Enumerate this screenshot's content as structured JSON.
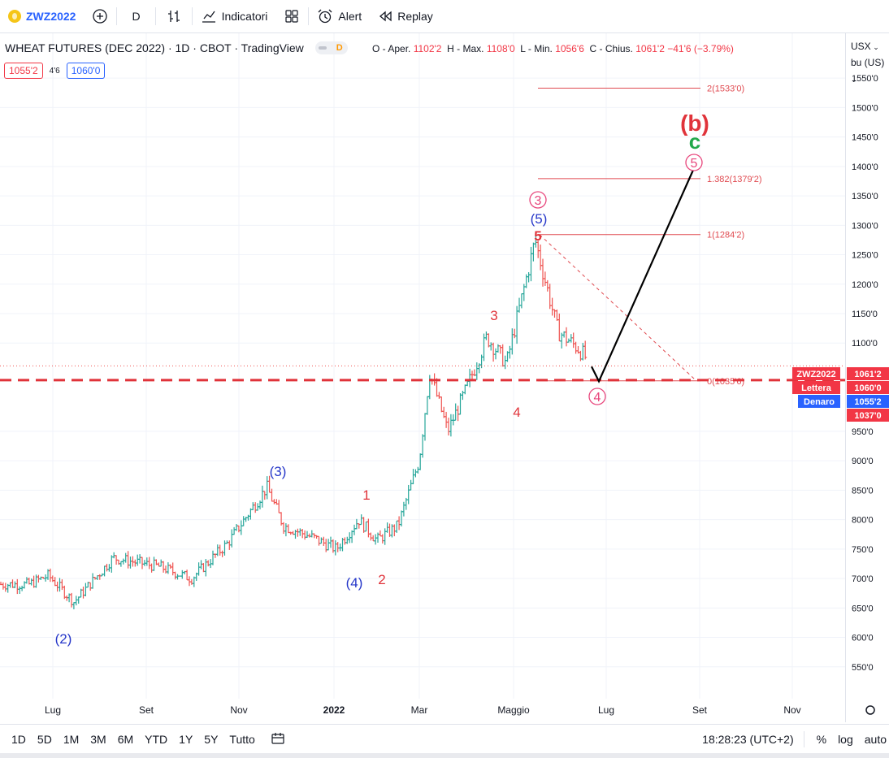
{
  "toolbar": {
    "symbol": "ZWZ2022",
    "interval": "D",
    "indicators_label": "Indicatori",
    "alert_label": "Alert",
    "replay_label": "Replay"
  },
  "legend": {
    "title": "WHEAT FUTURES (DEC 2022) · 1D · CBOT · TradingView",
    "badge": "D",
    "open_label": "O - Aper.",
    "open": "1102'2",
    "high_label": "H - Max.",
    "high": "1108'0",
    "low_label": "L - Min.",
    "low": "1056'6",
    "close_label": "C - Chius.",
    "close": "1061'2",
    "change": "−41'6 (−3.79%)",
    "bid": "1055'2",
    "spread": "4'6",
    "ask": "1060'0"
  },
  "currency": {
    "label": "USX",
    "unit": "bu (US)"
  },
  "price_labels": [
    "1550'0",
    "1500'0",
    "1450'0",
    "1400'0",
    "1350'0",
    "1300'0",
    "1250'0",
    "1200'0",
    "1150'0",
    "1100'0",
    "950'0",
    "900'0",
    "850'0",
    "800'0",
    "750'0",
    "700'0",
    "650'0",
    "600'0",
    "550'0"
  ],
  "tags": [
    {
      "name": "ZWZ2022",
      "value": "1061'2",
      "color": "#f23645"
    },
    {
      "name": "Lettera",
      "value": "1060'0",
      "color": "#f23645"
    },
    {
      "name": "Denaro",
      "value": "1055'2",
      "color": "#2962ff"
    },
    {
      "name": "",
      "value": "1037'0",
      "color": "#f23645"
    }
  ],
  "time_labels": [
    "Lug",
    "Set",
    "Nov",
    "2022",
    "Mar",
    "Maggio",
    "Lug",
    "Set",
    "Nov"
  ],
  "fib_levels": [
    {
      "label": "2(1533'0)",
      "price": 1533
    },
    {
      "label": "1.382(1379'2)",
      "price": 1379.25
    },
    {
      "label": "1(1284'2)",
      "price": 1284.25
    },
    {
      "label": "0(1035'6)",
      "price": 1035.75
    }
  ],
  "wave_labels": {
    "blue": [
      "(2)",
      "(3)",
      "(4)",
      "(5)"
    ],
    "red": [
      "1",
      "2",
      "3",
      "4",
      "5"
    ],
    "circled": [
      "3",
      "4",
      "5"
    ],
    "b": "(b)",
    "c": "c"
  },
  "ranges": [
    "1D",
    "5D",
    "1M",
    "3M",
    "6M",
    "YTD",
    "1Y",
    "5Y",
    "Tutto"
  ],
  "clock": "18:28:23 (UTC+2)",
  "scale_opts": [
    "%",
    "log",
    "auto"
  ],
  "colors": {
    "up": "#26a69a",
    "down": "#ef5350",
    "fib": "#e04a50",
    "blue": "#2637c9",
    "red": "#e0333a",
    "green": "#22a84a",
    "pink": "#e8467c"
  },
  "chart_data": {
    "type": "ohlc",
    "symbol": "ZWZ2022",
    "x_axis": [
      "Lug",
      "Set",
      "Nov",
      "2022",
      "Mar",
      "Maggio",
      "Lug",
      "Set",
      "Nov"
    ],
    "ylim": [
      520,
      1580
    ],
    "price_line": 1061.25,
    "support_line": 1037,
    "series": [
      {
        "name": "price",
        "x": [
          "2021-06-15",
          "2021-06-28",
          "2021-07-15",
          "2021-08-10",
          "2021-09-10",
          "2021-10-01",
          "2021-10-25",
          "2021-11-20",
          "2021-12-01",
          "2021-12-20",
          "2022-01-05",
          "2022-01-20",
          "2022-02-01",
          "2022-02-15",
          "2022-03-01",
          "2022-03-08",
          "2022-03-20",
          "2022-04-01",
          "2022-04-15",
          "2022-04-28",
          "2022-05-17",
          "2022-06-01",
          "2022-06-15",
          "2022-06-24"
        ],
        "y": [
          690,
          705,
          660,
          735,
          720,
          700,
          760,
          855,
          790,
          770,
          750,
          800,
          765,
          790,
          900,
          1050,
          950,
          1020,
          1110,
          1065,
          1275,
          1120,
          1090,
          1061
        ]
      }
    ],
    "projection": {
      "from_price": 1035,
      "to_price": 1400
    }
  }
}
